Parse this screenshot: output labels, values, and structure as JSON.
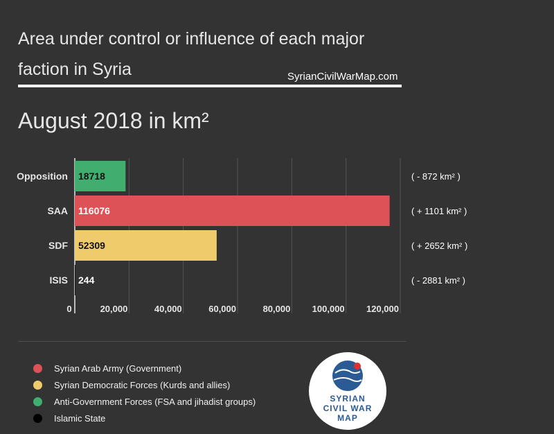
{
  "title": "Area under control or influence of each major faction in Syria",
  "source": "SyrianCivilWarMap.com",
  "subtitle": "August 2018 in km²",
  "chart_data": {
    "type": "bar",
    "orientation": "horizontal",
    "title": "Area under control or influence of each major faction in Syria",
    "subtitle": "August 2018 in km²",
    "categories": [
      "Opposition",
      "SAA",
      "SDF",
      "ISIS"
    ],
    "values": [
      18718,
      116076,
      52309,
      244
    ],
    "data_labels": [
      "18718",
      "116076",
      "52309",
      "244"
    ],
    "changes": [
      "( - 872 km² )",
      "( + 1101 km² )",
      "( + 2652 km² )",
      "( - 2881 km² )"
    ],
    "colors": [
      "#3fae6e",
      "#dc5257",
      "#f0cb6b",
      "#111111"
    ],
    "xlim": [
      0,
      120000
    ],
    "x_ticks": [
      0,
      20000,
      40000,
      60000,
      80000,
      100000,
      120000
    ],
    "x_tick_labels": [
      "0",
      "20,000",
      "40,000",
      "60,000",
      "80,000",
      "100,000",
      "120,000"
    ],
    "grid": true
  },
  "legend": [
    {
      "label": "Syrian Arab Army (Government)",
      "color": "#dc5257"
    },
    {
      "label": "Syrian Democratic Forces (Kurds and allies)",
      "color": "#f0cb6b"
    },
    {
      "label": "Anti-Government Forces (FSA and jihadist groups)",
      "color": "#3fae6e"
    },
    {
      "label": "Islamic State",
      "color": "#000000"
    }
  ],
  "logo": {
    "line1": "SYRIAN",
    "line2": "CIVIL WAR",
    "line3": "MAP"
  }
}
